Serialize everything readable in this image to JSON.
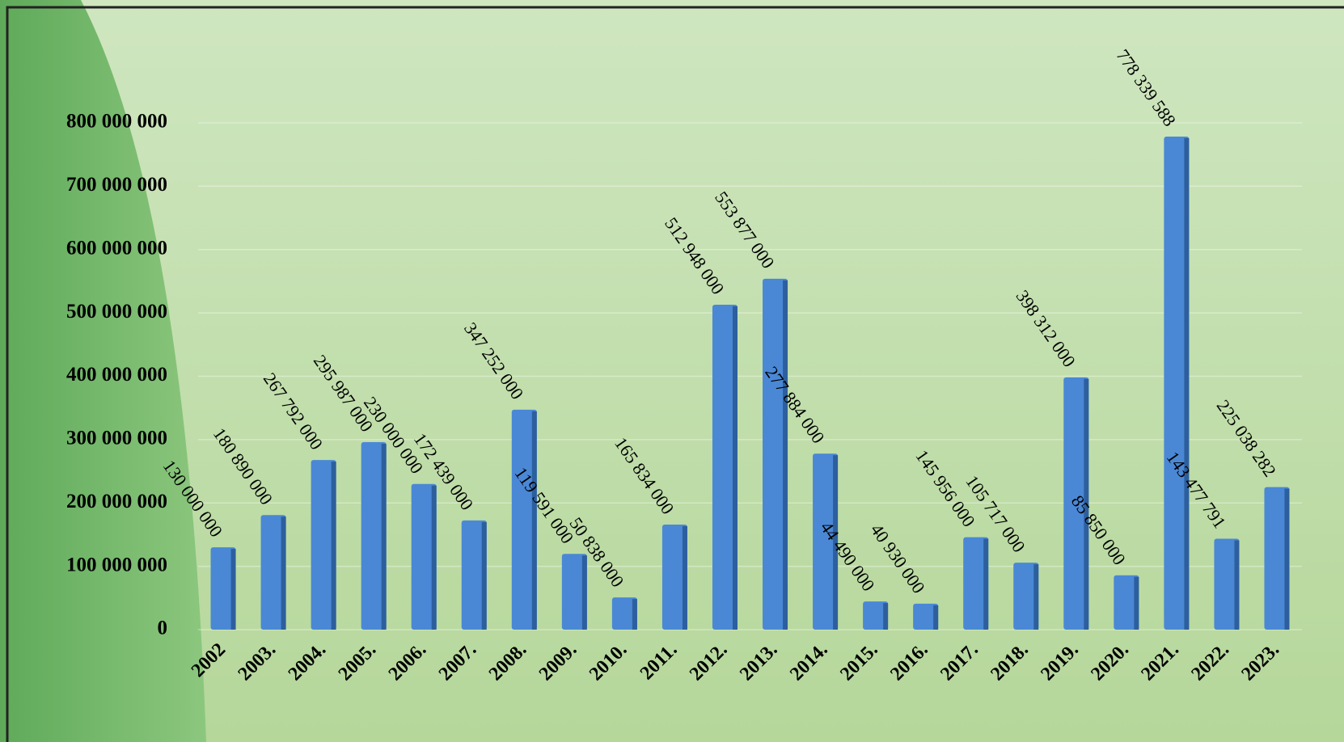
{
  "chart_data": {
    "type": "bar",
    "categories": [
      "2002",
      "2003.",
      "2004.",
      "2005.",
      "2006.",
      "2007.",
      "2008.",
      "2009.",
      "2010.",
      "2011.",
      "2012.",
      "2013.",
      "2014.",
      "2015.",
      "2016.",
      "2017.",
      "2018.",
      "2019.",
      "2020.",
      "2021.",
      "2022.",
      "2023."
    ],
    "values": [
      130000000,
      180890000,
      267792000,
      295987000,
      230000000,
      172439000,
      347252000,
      119591000,
      50838000,
      165834000,
      512948000,
      553877000,
      277884000,
      44490000,
      40930000,
      145956000,
      105717000,
      398312000,
      85850000,
      778339588,
      143477791,
      225038282
    ],
    "value_labels": [
      "130 000 000",
      "180 890 000",
      "267 792 000",
      "295 987 000",
      "230 000 000",
      "172 439 000",
      "347 252 000",
      "119 591 000",
      "50 838 000",
      "165 834 000",
      "512 948 000",
      "553 877 000",
      "277 884 000",
      "44 490 000",
      "40 930 000",
      "145 956 000",
      "105 717 000",
      "398 312 000",
      "85 850 000",
      "778 339 588",
      "143 477 791",
      "225 038 282"
    ],
    "color": "#4a88d6",
    "ylim": [
      0,
      800000000
    ],
    "yticks": [
      {
        "value": 0,
        "label": "0"
      },
      {
        "value": 100000000,
        "label": "100 000 000"
      },
      {
        "value": 200000000,
        "label": "200 000 000"
      },
      {
        "value": 300000000,
        "label": "300 000 000"
      },
      {
        "value": 400000000,
        "label": "400 000 000"
      },
      {
        "value": 500000000,
        "label": "500 000 000"
      },
      {
        "value": 600000000,
        "label": "600 000 000"
      },
      {
        "value": 700000000,
        "label": "700 000 000"
      },
      {
        "value": 800000000,
        "label": "800 000 000"
      }
    ],
    "grid": true
  }
}
